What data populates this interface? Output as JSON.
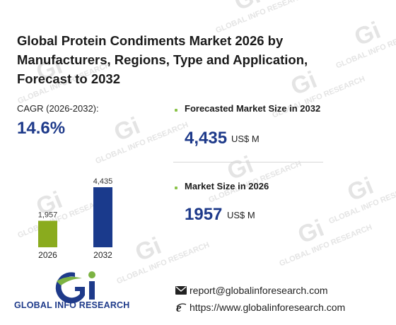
{
  "title": "Global Protein Condiments Market 2026 by Manufacturers, Regions, Type and Application, Forecast to 2032",
  "cagr": {
    "label": "CAGR (2026-2032):",
    "value": "14.6%"
  },
  "stats": [
    {
      "label": "Forecasted Market Size in 2032",
      "value": "4,435",
      "unit": "US$ M"
    },
    {
      "label": "Market Size in 2026",
      "value": "1957",
      "unit": "US$ M"
    }
  ],
  "chart_data": {
    "type": "bar",
    "categories": [
      "2026",
      "2032"
    ],
    "values": [
      1957,
      4435
    ],
    "value_labels": [
      "1,957",
      "4,435"
    ],
    "colors": [
      "#8aab1e",
      "#1a3a8c"
    ]
  },
  "logo": {
    "text": "GLOBAL INFO RESEARCH"
  },
  "contact": {
    "email": "report@globalinforesearch.com",
    "website": "https://www.globalinforesearch.com"
  },
  "watermark": {
    "text": "GLOBAL INFO RESEARCH"
  },
  "icons": {
    "email": "envelope-icon",
    "website": "ie-browser-icon",
    "bullet": "green-square-bullet"
  }
}
